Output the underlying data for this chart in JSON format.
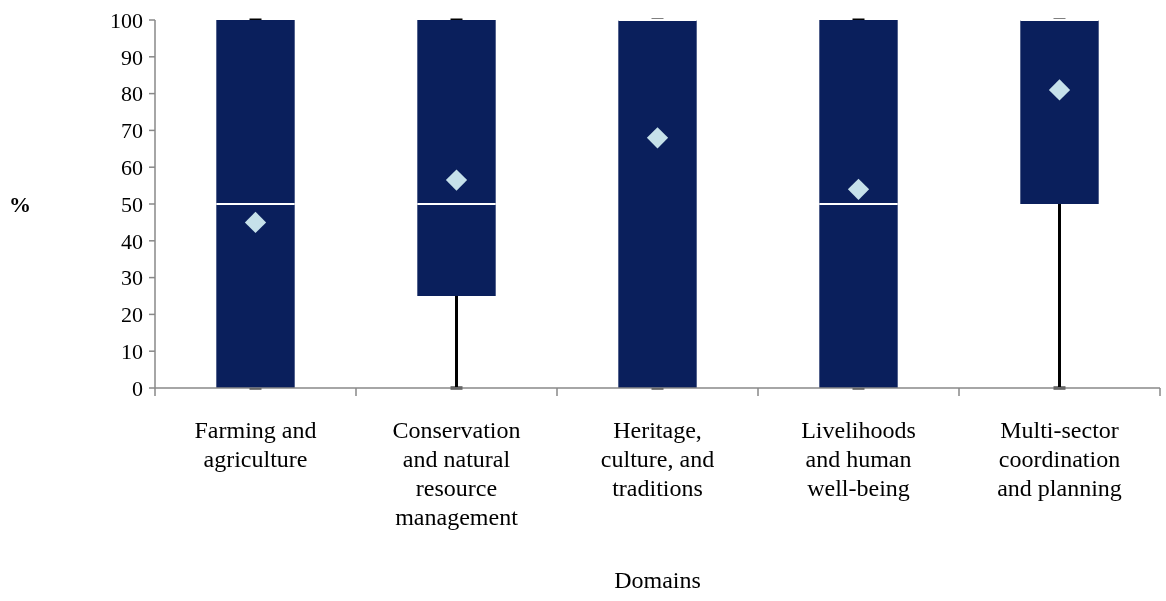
{
  "chart_data": {
    "type": "box",
    "xlabel": "Domains",
    "ylabel": "%",
    "categories": [
      "Farming and agriculture",
      "Conservation and natural resource management",
      "Heritage, culture, and traditions",
      "Livelihoods and  human well-being",
      "Multi-sector coordination and planning"
    ],
    "boxes": [
      {
        "low": 0,
        "q1": 0,
        "median": 50,
        "q3": 100,
        "high": 100,
        "mean": 45
      },
      {
        "low": 0,
        "q1": 25,
        "median": 50,
        "q3": 100,
        "high": 100,
        "mean": 56.5
      },
      {
        "low": 0,
        "q1": 0,
        "median": 100,
        "q3": 100,
        "high": 100,
        "mean": 68
      },
      {
        "low": 0,
        "q1": 0,
        "median": 50,
        "q3": 100,
        "high": 100,
        "mean": 54
      },
      {
        "low": 0,
        "q1": 50,
        "median": 100,
        "q3": 100,
        "high": 100,
        "mean": 81
      }
    ],
    "color": "#0a1f5c",
    "marker": "diamond",
    "ylim": [
      0,
      100
    ],
    "yticks": [
      0,
      10,
      20,
      30,
      40,
      50,
      60,
      70,
      80,
      90,
      100
    ],
    "grid": false
  }
}
